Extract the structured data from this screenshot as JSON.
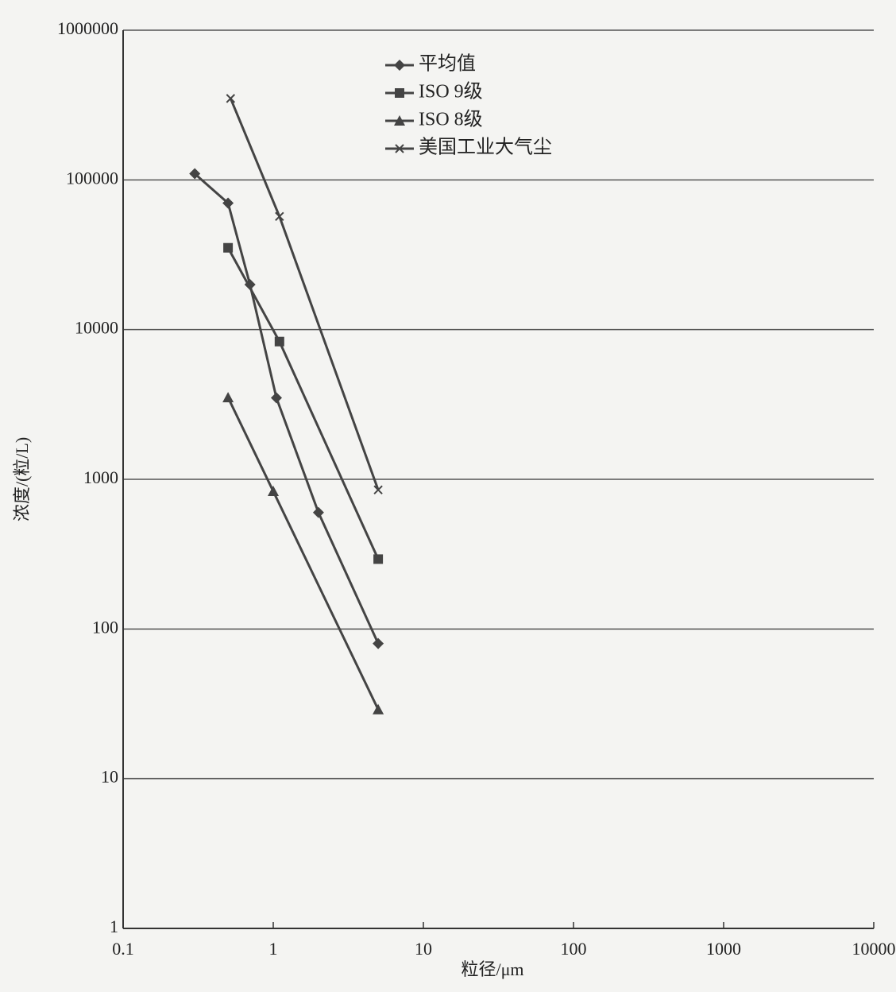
{
  "chart_data": {
    "type": "line",
    "xlabel": "粒径/μm",
    "ylabel": "浓度/(粒/L)",
    "xscale": "log",
    "yscale": "log",
    "grid": true,
    "legend": "upper center",
    "xlim": [
      0.1,
      10000
    ],
    "xticks": [
      0.1,
      1,
      10,
      100,
      1000,
      10000
    ],
    "ylim": [
      1,
      1000000
    ],
    "yticks": [
      1,
      10,
      100,
      1000,
      10000,
      100000,
      1000000
    ],
    "series": [
      {
        "name": "平均值",
        "color": "#444444",
        "marker": "diamond",
        "x": [
          0.3,
          0.5,
          0.7,
          1.05,
          2,
          5
        ],
        "values": [
          110000,
          70000,
          20000,
          3500,
          600,
          80
        ]
      },
      {
        "name": "ISO 9级",
        "color": "#444444",
        "marker": "square",
        "x": [
          0.5,
          1.1,
          5
        ],
        "values": [
          35200,
          8320,
          293
        ]
      },
      {
        "name": "ISO 8级",
        "color": "#444444",
        "marker": "triangle",
        "x": [
          0.5,
          1,
          5
        ],
        "values": [
          3520,
          832,
          29
        ]
      },
      {
        "name": "美国工业大气尘",
        "color": "#444444",
        "marker": "x",
        "x": [
          0.52,
          1.1,
          5
        ],
        "values": [
          350000,
          57000,
          850
        ]
      }
    ]
  }
}
